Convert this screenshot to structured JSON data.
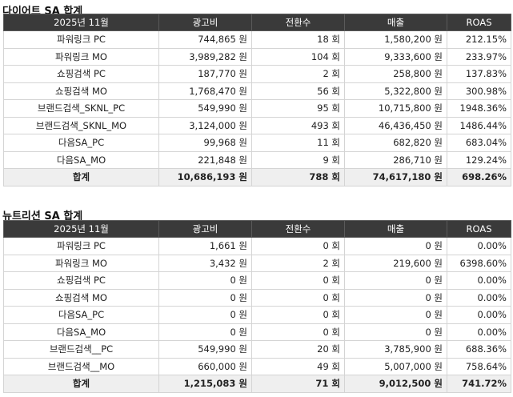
{
  "tables": [
    {
      "title": "다이어트 SA 합계",
      "headers": [
        "2025년 11월",
        "광고비",
        "전환수",
        "매출",
        "ROAS"
      ],
      "rows": [
        [
          "파워링크 PC",
          "744,865 원",
          "18 회",
          "1,580,200 원",
          "212.15%"
        ],
        [
          "파워링크 MO",
          "3,989,282 원",
          "104 회",
          "9,333,600 원",
          "233.97%"
        ],
        [
          "쇼핑검색 PC",
          "187,770 원",
          "2 회",
          "258,800 원",
          "137.83%"
        ],
        [
          "쇼핑검색 MO",
          "1,768,470 원",
          "56 회",
          "5,322,800 원",
          "300.98%"
        ],
        [
          "브랜드검색_SKNL_PC",
          "549,990 원",
          "95 회",
          "10,715,800 원",
          "1948.36%"
        ],
        [
          "브랜드검색_SKNL_MO",
          "3,124,000 원",
          "493 회",
          "46,436,450 원",
          "1486.44%"
        ],
        [
          "다음SA_PC",
          "99,968 원",
          "11 회",
          "682,820 원",
          "683.04%"
        ],
        [
          "다음SA_MO",
          "221,848 원",
          "9 회",
          "286,710 원",
          "129.24%"
        ]
      ],
      "total": [
        "합계",
        "10,686,193 원",
        "788 회",
        "74,617,180 원",
        "698.26%"
      ]
    },
    {
      "title": "뉴트리션 SA 합계",
      "headers": [
        "2025년 11월",
        "광고비",
        "전환수",
        "매출",
        "ROAS"
      ],
      "rows": [
        [
          "파워링크 PC",
          "1,661 원",
          "0 회",
          "0 원",
          "0.00%"
        ],
        [
          "파워링크 MO",
          "3,432 원",
          "2 회",
          "219,600 원",
          "6398.60%"
        ],
        [
          "쇼핑검색 PC",
          "0 원",
          "0 회",
          "0 원",
          "0.00%"
        ],
        [
          "쇼핑검색 MO",
          "0 원",
          "0 회",
          "0 원",
          "0.00%"
        ],
        [
          "다음SA_PC",
          "0 원",
          "0 회",
          "0 원",
          "0.00%"
        ],
        [
          "다음SA_MO",
          "0 원",
          "0 회",
          "0 원",
          "0.00%"
        ],
        [
          "브랜드검색__PC",
          "549,990 원",
          "20 회",
          "3,785,900 원",
          "688.36%"
        ],
        [
          "브랜드검색__MO",
          "660,000 원",
          "49 회",
          "5,007,000 원",
          "758.64%"
        ]
      ],
      "total": [
        "합계",
        "1,215,083 원",
        "71 회",
        "9,012,500 원",
        "741.72%"
      ]
    }
  ]
}
